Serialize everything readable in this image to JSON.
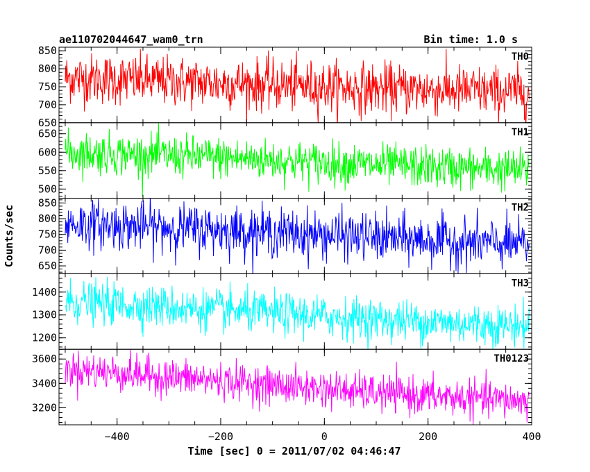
{
  "header": {
    "title": "ae110702044647_wam0_trn",
    "bin_time": "Bin time: 1.0 s"
  },
  "chart_data": {
    "type": "line",
    "xlabel": "Time [sec] 0 = 2011/07/02 04:46:47",
    "ylabel": "Counts/sec",
    "xlim": [
      -512,
      400
    ],
    "xticks": [
      -400,
      -200,
      0,
      200,
      400
    ],
    "panels": [
      {
        "name": "TH0",
        "color": "#ff0000",
        "ylim": [
          650,
          860
        ],
        "yticks": [
          650,
          700,
          750,
          800,
          850
        ],
        "trend": [
          [
            -500,
            775
          ],
          [
            -200,
            760
          ],
          [
            100,
            745
          ],
          [
            400,
            735
          ]
        ],
        "noise_sigma": 35,
        "points": [
          [
            -500,
            770
          ],
          [
            -400,
            785
          ],
          [
            -300,
            770
          ],
          [
            -200,
            760
          ],
          [
            -100,
            752
          ],
          [
            0,
            750
          ],
          [
            100,
            745
          ],
          [
            200,
            742
          ],
          [
            300,
            738
          ],
          [
            395,
            735
          ]
        ]
      },
      {
        "name": "TH1",
        "color": "#00ff00",
        "ylim": [
          475,
          680
        ],
        "yticks": [
          500,
          550,
          600,
          650
        ],
        "trend": [
          [
            -500,
            600
          ],
          [
            -200,
            585
          ],
          [
            100,
            565
          ],
          [
            400,
            550
          ]
        ],
        "noise_sigma": 28,
        "points": [
          [
            -500,
            605
          ],
          [
            -400,
            595
          ],
          [
            -300,
            590
          ],
          [
            -200,
            585
          ],
          [
            -100,
            578
          ],
          [
            0,
            572
          ],
          [
            100,
            565
          ],
          [
            200,
            560
          ],
          [
            300,
            555
          ],
          [
            395,
            550
          ]
        ]
      },
      {
        "name": "TH2",
        "color": "#0000ff",
        "ylim": [
          625,
          865
        ],
        "yticks": [
          650,
          700,
          750,
          800,
          850
        ],
        "trend": [
          [
            -500,
            785
          ],
          [
            -200,
            765
          ],
          [
            100,
            740
          ],
          [
            400,
            715
          ]
        ],
        "noise_sigma": 38,
        "points": [
          [
            -500,
            790
          ],
          [
            -400,
            780
          ],
          [
            -300,
            772
          ],
          [
            -200,
            765
          ],
          [
            -100,
            755
          ],
          [
            0,
            748
          ],
          [
            100,
            740
          ],
          [
            200,
            732
          ],
          [
            300,
            722
          ],
          [
            395,
            715
          ]
        ]
      },
      {
        "name": "TH3",
        "color": "#00ffff",
        "ylim": [
          1150,
          1480
        ],
        "yticks": [
          1200,
          1300,
          1400
        ],
        "trend": [
          [
            -500,
            1360
          ],
          [
            -200,
            1320
          ],
          [
            100,
            1280
          ],
          [
            400,
            1250
          ]
        ],
        "noise_sigma": 45,
        "points": [
          [
            -500,
            1370
          ],
          [
            -400,
            1350
          ],
          [
            -300,
            1335
          ],
          [
            -200,
            1320
          ],
          [
            -100,
            1305
          ],
          [
            0,
            1292
          ],
          [
            100,
            1280
          ],
          [
            200,
            1270
          ],
          [
            300,
            1258
          ],
          [
            395,
            1250
          ]
        ]
      },
      {
        "name": "TH0123",
        "color": "#ff00ff",
        "ylim": [
          3060,
          3680
        ],
        "yticks": [
          3200,
          3400,
          3600
        ],
        "trend": [
          [
            -500,
            3520
          ],
          [
            -200,
            3420
          ],
          [
            100,
            3320
          ],
          [
            400,
            3250
          ]
        ],
        "noise_sigma": 75,
        "points": [
          [
            -500,
            3540
          ],
          [
            -400,
            3480
          ],
          [
            -300,
            3450
          ],
          [
            -200,
            3420
          ],
          [
            -100,
            3380
          ],
          [
            0,
            3350
          ],
          [
            100,
            3320
          ],
          [
            200,
            3295
          ],
          [
            300,
            3270
          ],
          [
            395,
            3250
          ]
        ]
      }
    ]
  }
}
